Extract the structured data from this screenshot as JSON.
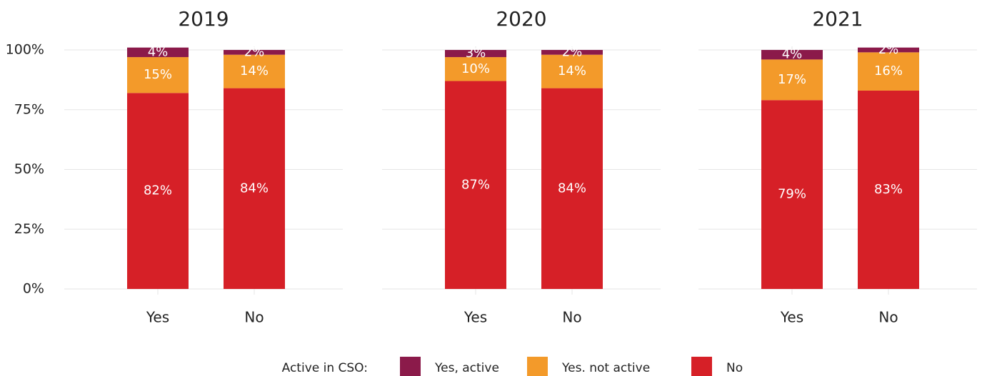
{
  "chart_data": [
    {
      "type": "bar",
      "title": "2019",
      "categories": [
        "Yes",
        "No"
      ],
      "ylim": [
        0,
        100
      ],
      "yticks": [
        {
          "value": 0,
          "label": "0%"
        },
        {
          "value": 25,
          "label": "25%"
        },
        {
          "value": 50,
          "label": "50%"
        },
        {
          "value": 75,
          "label": "75%"
        },
        {
          "value": 100,
          "label": "100%"
        }
      ],
      "grid": true,
      "stacked": true,
      "legend_title": "Active in CSO:",
      "legend": "bottom",
      "series": [
        {
          "name": "No",
          "color": "#d62027",
          "values": [
            82,
            84
          ],
          "value_labels": [
            "82%",
            "84%"
          ]
        },
        {
          "name": "Yes. not active",
          "color": "#f39a2a",
          "values": [
            15,
            14
          ],
          "value_labels": [
            "15%",
            "14%"
          ]
        },
        {
          "name": "Yes, active",
          "color": "#8b1a4a",
          "values": [
            4,
            2
          ],
          "value_labels": [
            "4%",
            "2%"
          ]
        }
      ]
    },
    {
      "type": "bar",
      "title": "2020",
      "categories": [
        "Yes",
        "No"
      ],
      "ylim": [
        0,
        100
      ],
      "yticks": [
        {
          "value": 0,
          "label": "0%"
        },
        {
          "value": 25,
          "label": "25%"
        },
        {
          "value": 50,
          "label": "50%"
        },
        {
          "value": 75,
          "label": "75%"
        },
        {
          "value": 100,
          "label": "100%"
        }
      ],
      "grid": true,
      "stacked": true,
      "series": [
        {
          "name": "No",
          "color": "#d62027",
          "values": [
            87,
            84
          ],
          "value_labels": [
            "87%",
            "84%"
          ]
        },
        {
          "name": "Yes. not active",
          "color": "#f39a2a",
          "values": [
            10,
            14
          ],
          "value_labels": [
            "10%",
            "14%"
          ]
        },
        {
          "name": "Yes, active",
          "color": "#8b1a4a",
          "values": [
            3,
            2
          ],
          "value_labels": [
            "3%",
            "2%"
          ]
        }
      ]
    },
    {
      "type": "bar",
      "title": "2021",
      "categories": [
        "Yes",
        "No"
      ],
      "ylim": [
        0,
        100
      ],
      "yticks": [
        {
          "value": 0,
          "label": "0%"
        },
        {
          "value": 25,
          "label": "25%"
        },
        {
          "value": 50,
          "label": "50%"
        },
        {
          "value": 75,
          "label": "75%"
        },
        {
          "value": 100,
          "label": "100%"
        }
      ],
      "grid": true,
      "stacked": true,
      "series": [
        {
          "name": "No",
          "color": "#d62027",
          "values": [
            79,
            83
          ],
          "value_labels": [
            "79%",
            "83%"
          ]
        },
        {
          "name": "Yes. not active",
          "color": "#f39a2a",
          "values": [
            17,
            16
          ],
          "value_labels": [
            "17%",
            "16%"
          ]
        },
        {
          "name": "Yes, active",
          "color": "#8b1a4a",
          "values": [
            4,
            2
          ],
          "value_labels": [
            "4%",
            "2%"
          ]
        }
      ]
    }
  ]
}
